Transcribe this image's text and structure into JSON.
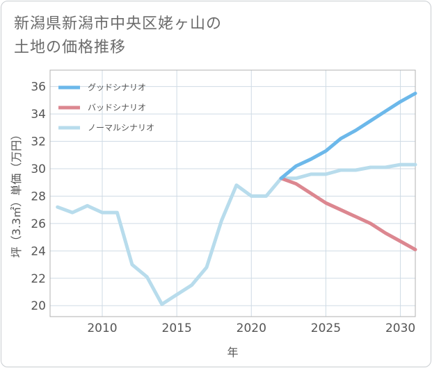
{
  "title_lines": [
    "新潟県新潟市中央区姥ヶ山の",
    "土地の価格推移"
  ],
  "colors": {
    "good": "#6cb8ea",
    "bad": "#dc8790",
    "normal": "#b8dcec",
    "grid": "#cfdbe5",
    "plot_border": "#b0b0b0"
  },
  "chart_data": {
    "type": "line",
    "title": "新潟県新潟市中央区姥ヶ山の土地の価格推移",
    "xlabel": "年",
    "ylabel": "坪（3.3㎡）単価（万円）",
    "xlim": [
      2006.5,
      2031
    ],
    "ylim": [
      19.2,
      37.2
    ],
    "xticks": [
      2010,
      2015,
      2020,
      2025,
      2030
    ],
    "yticks": [
      20,
      22,
      24,
      26,
      28,
      30,
      32,
      34,
      36
    ],
    "grid": true,
    "legend_position": "top-left",
    "series": [
      {
        "name": "グッドシナリオ",
        "color": "#6cb8ea",
        "x": [
          2022,
          2023,
          2024,
          2025,
          2026,
          2027,
          2028,
          2029,
          2030,
          2031
        ],
        "y": [
          29.3,
          30.2,
          30.7,
          31.3,
          32.2,
          32.8,
          33.5,
          34.2,
          34.9,
          35.5
        ]
      },
      {
        "name": "バッドシナリオ",
        "color": "#dc8790",
        "x": [
          2022,
          2023,
          2024,
          2025,
          2026,
          2027,
          2028,
          2029,
          2030,
          2031
        ],
        "y": [
          29.3,
          28.9,
          28.2,
          27.5,
          27.0,
          26.5,
          26.0,
          25.3,
          24.7,
          24.1
        ]
      },
      {
        "name": "ノーマルシナリオ",
        "color": "#b8dcec",
        "x": [
          2007,
          2008,
          2009,
          2010,
          2011,
          2012,
          2013,
          2014,
          2015,
          2016,
          2017,
          2018,
          2019,
          2020,
          2021,
          2022,
          2023,
          2024,
          2025,
          2026,
          2027,
          2028,
          2029,
          2030,
          2031
        ],
        "y": [
          27.2,
          26.8,
          27.3,
          26.8,
          26.8,
          23.0,
          22.1,
          20.1,
          20.8,
          21.5,
          22.8,
          26.2,
          28.8,
          28.0,
          28.0,
          29.3,
          29.3,
          29.6,
          29.6,
          29.9,
          29.9,
          30.1,
          30.1,
          30.3,
          30.3
        ]
      }
    ]
  }
}
